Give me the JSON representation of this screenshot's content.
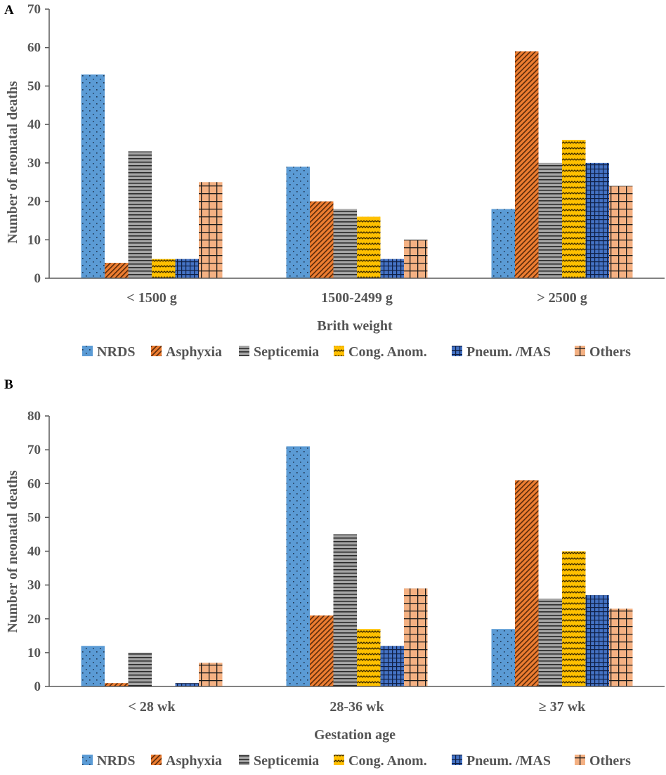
{
  "series_colors": {
    "NRDS": "#5b9bd5",
    "Asphyxia": "#ed7d31",
    "Septicemia": "#a5a5a5",
    "Cong. Anom.": "#ffc000",
    "Pneum. /MAS": "#4472c4",
    "Others": "#f4b183"
  },
  "chart_data": [
    {
      "panel": "A",
      "type": "bar",
      "title": "",
      "xlabel": "Brith weight",
      "ylabel": "Number of neonatal deaths",
      "ylim": [
        0,
        70
      ],
      "ytick_step": 10,
      "categories": [
        "< 1500 g",
        "1500-2499 g",
        "> 2500 g"
      ],
      "series": [
        {
          "name": "NRDS",
          "values": [
            53,
            29,
            18
          ]
        },
        {
          "name": "Asphyxia",
          "values": [
            4,
            20,
            59
          ]
        },
        {
          "name": "Septicemia",
          "values": [
            33,
            18,
            30
          ]
        },
        {
          "name": "Cong. Anom.",
          "values": [
            5,
            16,
            36
          ]
        },
        {
          "name": "Pneum. /MAS",
          "values": [
            5,
            5,
            30
          ]
        },
        {
          "name": "Others",
          "values": [
            25,
            10,
            24
          ]
        }
      ],
      "legend": "bottom"
    },
    {
      "panel": "B",
      "type": "bar",
      "title": "",
      "xlabel": "Gestation age",
      "ylabel": "Number of neonatal deaths",
      "ylim": [
        0,
        80
      ],
      "ytick_step": 10,
      "categories": [
        "< 28 wk",
        "28-36 wk",
        "≥ 37 wk"
      ],
      "series": [
        {
          "name": "NRDS",
          "values": [
            12,
            71,
            17
          ]
        },
        {
          "name": "Asphyxia",
          "values": [
            1,
            21,
            61
          ]
        },
        {
          "name": "Septicemia",
          "values": [
            10,
            45,
            26
          ]
        },
        {
          "name": "Cong. Anom.",
          "values": [
            0,
            17,
            40
          ]
        },
        {
          "name": "Pneum. /MAS",
          "values": [
            1,
            12,
            27
          ]
        },
        {
          "name": "Others",
          "values": [
            7,
            29,
            23
          ]
        }
      ],
      "legend": "bottom"
    }
  ]
}
